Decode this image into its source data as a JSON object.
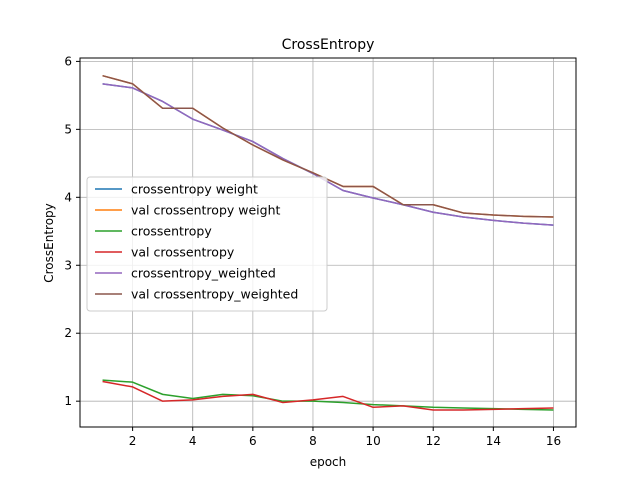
{
  "chart_data": {
    "type": "line",
    "title": "CrossEntropy",
    "xlabel": "epoch",
    "ylabel": "CrossEntropy",
    "xlim": [
      0.25,
      16.75
    ],
    "ylim": [
      0.62,
      6.05
    ],
    "x_ticks": [
      2,
      4,
      6,
      8,
      10,
      12,
      14,
      16
    ],
    "y_ticks": [
      1,
      2,
      3,
      4,
      5,
      6
    ],
    "grid": true,
    "legend_position": "center-left",
    "x": [
      1,
      2,
      3,
      4,
      5,
      6,
      7,
      8,
      9,
      10,
      11,
      12,
      13,
      14,
      15,
      16
    ],
    "series": [
      {
        "name": "crossentropy weight",
        "color": "#1f77b4",
        "values": [
          5.67,
          5.61,
          5.41,
          5.15,
          4.99,
          4.82,
          4.57,
          4.35,
          4.1,
          3.99,
          3.89,
          3.78,
          3.71,
          3.66,
          3.62,
          3.59
        ]
      },
      {
        "name": "val crossentropy weight",
        "color": "#ff7f0e",
        "values": [
          5.79,
          5.67,
          5.31,
          5.31,
          5.02,
          4.77,
          4.55,
          4.36,
          4.16,
          4.16,
          3.89,
          3.89,
          3.77,
          3.74,
          3.72,
          3.71
        ]
      },
      {
        "name": "crossentropy",
        "color": "#2ca02c",
        "values": [
          1.31,
          1.28,
          1.1,
          1.04,
          1.1,
          1.08,
          1.0,
          1.0,
          0.98,
          0.95,
          0.93,
          0.91,
          0.9,
          0.89,
          0.88,
          0.87
        ]
      },
      {
        "name": "val crossentropy",
        "color": "#d62728",
        "values": [
          1.29,
          1.21,
          1.0,
          1.02,
          1.07,
          1.1,
          0.98,
          1.02,
          1.07,
          0.91,
          0.93,
          0.87,
          0.87,
          0.88,
          0.89,
          0.9
        ]
      },
      {
        "name": "crossentropy_weighted",
        "color": "#9467bd",
        "values": [
          5.67,
          5.61,
          5.41,
          5.15,
          4.99,
          4.82,
          4.57,
          4.35,
          4.1,
          3.99,
          3.89,
          3.78,
          3.71,
          3.66,
          3.62,
          3.59
        ]
      },
      {
        "name": "val crossentropy_weighted",
        "color": "#8c564b",
        "values": [
          5.79,
          5.67,
          5.31,
          5.31,
          5.02,
          4.77,
          4.55,
          4.36,
          4.16,
          4.16,
          3.89,
          3.89,
          3.77,
          3.74,
          3.72,
          3.71
        ]
      }
    ]
  }
}
